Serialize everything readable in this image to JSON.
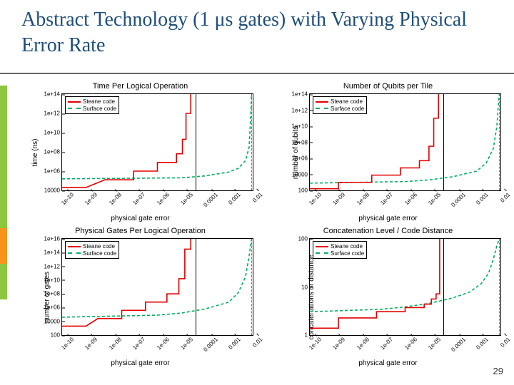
{
  "title": "Abstract Technology (1 μs gates) with Varying Physical Error Rate",
  "page_number": "29",
  "colors": {
    "title": "#1f4e79",
    "accent_green": "#8dc63f",
    "accent_orange": "#f7941d",
    "steane": "#e20000",
    "surface": "#00b060",
    "axis": "#000000"
  },
  "x_axis": {
    "label": "physical gate error",
    "ticks": [
      "1e-10",
      "1e-09",
      "1e-08",
      "1e-07",
      "1e-06",
      "1e-05",
      "0.0001",
      "0.001",
      "0.01"
    ],
    "log_min": -10,
    "log_max": -2,
    "vline_solid": -4.4,
    "vline_dash": -2.05
  },
  "legend": {
    "steane": "Steane code",
    "surface": "Surface code"
  },
  "charts": [
    {
      "title": "Time Per Logical Operation",
      "ylabel": "time (ns)",
      "yticks": [
        "10000",
        "1e+06",
        "1e+08",
        "1e+10",
        "1e+12",
        "1e+14"
      ],
      "y_log_min": 4,
      "y_log_max": 14,
      "steane": [
        [
          -10,
          4.3
        ],
        [
          -9,
          4.3
        ],
        [
          -8.2,
          5.1
        ],
        [
          -8.2,
          5.1
        ],
        [
          -7.0,
          5.1
        ],
        [
          -7.0,
          6.0
        ],
        [
          -6.0,
          6.0
        ],
        [
          -6.0,
          6.9
        ],
        [
          -5.2,
          6.9
        ],
        [
          -5.2,
          7.8
        ],
        [
          -4.95,
          7.8
        ],
        [
          -4.95,
          9.3
        ],
        [
          -4.8,
          9.3
        ],
        [
          -4.8,
          12
        ],
        [
          -4.6,
          12
        ],
        [
          -4.6,
          14
        ]
      ],
      "surface": [
        [
          -10,
          5.2
        ],
        [
          -5,
          5.3
        ],
        [
          -4,
          5.5
        ],
        [
          -3,
          5.9
        ],
        [
          -2.6,
          6.3
        ],
        [
          -2.3,
          7.1
        ],
        [
          -2.15,
          8.5
        ],
        [
          -2.08,
          12
        ],
        [
          -2.05,
          14
        ]
      ]
    },
    {
      "title": "Number of Qubits per Tile",
      "ylabel": "number of qubits",
      "yticks": [
        "100",
        "10000",
        "1e+06",
        "1e+08",
        "1e+10",
        "1e+12",
        "1e+14"
      ],
      "y_log_min": 2,
      "y_log_max": 14,
      "steane": [
        [
          -10,
          2.2
        ],
        [
          -8.8,
          2.2
        ],
        [
          -8.8,
          3.0
        ],
        [
          -7.4,
          3.0
        ],
        [
          -7.4,
          3.9
        ],
        [
          -6.2,
          3.9
        ],
        [
          -6.2,
          4.8
        ],
        [
          -5.4,
          4.8
        ],
        [
          -5.4,
          5.7
        ],
        [
          -5.0,
          5.7
        ],
        [
          -5.0,
          7.5
        ],
        [
          -4.8,
          7.5
        ],
        [
          -4.8,
          11
        ],
        [
          -4.6,
          11
        ],
        [
          -4.6,
          14
        ]
      ],
      "surface": [
        [
          -10,
          2.9
        ],
        [
          -6,
          3.1
        ],
        [
          -5,
          3.3
        ],
        [
          -4,
          3.7
        ],
        [
          -3,
          4.4
        ],
        [
          -2.6,
          5.4
        ],
        [
          -2.3,
          7.2
        ],
        [
          -2.15,
          10
        ],
        [
          -2.08,
          13
        ],
        [
          -2.05,
          14
        ]
      ]
    },
    {
      "title": "Physical Gates Per Logical Operation",
      "ylabel": "number of gates",
      "yticks": [
        "100",
        "10000",
        "1e+06",
        "1e+08",
        "1e+10",
        "1e+12",
        "1e+14",
        "1e+16"
      ],
      "y_log_min": 2,
      "y_log_max": 16,
      "steane": [
        [
          -10,
          3.3
        ],
        [
          -9,
          3.3
        ],
        [
          -8.5,
          4.4
        ],
        [
          -7.5,
          4.4
        ],
        [
          -7.5,
          5.6
        ],
        [
          -6.5,
          5.6
        ],
        [
          -6.5,
          6.8
        ],
        [
          -5.6,
          6.8
        ],
        [
          -5.6,
          8.0
        ],
        [
          -5.1,
          8.0
        ],
        [
          -5.1,
          10.2
        ],
        [
          -4.85,
          10.2
        ],
        [
          -4.85,
          14.5
        ],
        [
          -4.6,
          14.5
        ],
        [
          -4.6,
          16
        ]
      ],
      "surface": [
        [
          -10,
          4.6
        ],
        [
          -6,
          4.9
        ],
        [
          -5,
          5.2
        ],
        [
          -4,
          5.8
        ],
        [
          -3,
          6.8
        ],
        [
          -2.6,
          8.2
        ],
        [
          -2.3,
          10.5
        ],
        [
          -2.15,
          13.5
        ],
        [
          -2.05,
          16
        ]
      ]
    },
    {
      "title": "Concatenation Level / Code Distance",
      "ylabel": "concatenations or distance",
      "yticks": [
        "1",
        "10",
        "100"
      ],
      "y_log_min": -0.2,
      "y_log_max": 2.6,
      "steane": [
        [
          -10,
          0
        ],
        [
          -8.8,
          0
        ],
        [
          -8.8,
          0.3
        ],
        [
          -7.2,
          0.3
        ],
        [
          -7.2,
          0.48
        ],
        [
          -6.0,
          0.48
        ],
        [
          -6.0,
          0.6
        ],
        [
          -5.2,
          0.6
        ],
        [
          -5.2,
          0.7
        ],
        [
          -4.9,
          0.7
        ],
        [
          -4.9,
          0.85
        ],
        [
          -4.7,
          0.85
        ],
        [
          -4.7,
          1.0
        ],
        [
          -4.55,
          1.0
        ],
        [
          -4.55,
          2.6
        ]
      ],
      "surface": [
        [
          -10,
          0.48
        ],
        [
          -7,
          0.55
        ],
        [
          -6,
          0.62
        ],
        [
          -5,
          0.72
        ],
        [
          -4,
          0.88
        ],
        [
          -3.3,
          1.05
        ],
        [
          -2.8,
          1.3
        ],
        [
          -2.5,
          1.6
        ],
        [
          -2.3,
          2.0
        ],
        [
          -2.15,
          2.4
        ],
        [
          -2.05,
          2.6
        ]
      ]
    }
  ]
}
